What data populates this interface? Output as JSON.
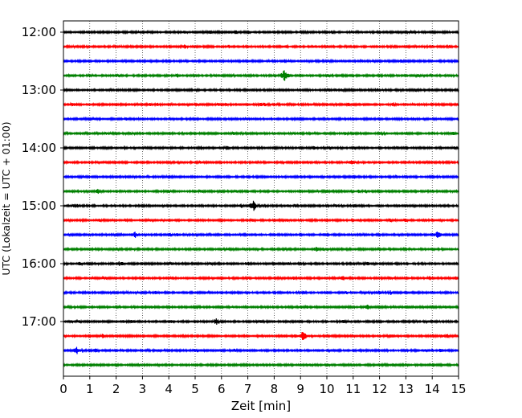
{
  "chart_data": {
    "type": "line",
    "xlabel": "Zeit  [min]",
    "ylabel": "UTC (Lokalzeit = UTC + 01:00)",
    "xlim": [
      0,
      15
    ],
    "x_ticks": [
      0,
      1,
      2,
      3,
      4,
      5,
      6,
      7,
      8,
      9,
      10,
      11,
      12,
      13,
      14,
      15
    ],
    "x_tick_labels": [
      "0",
      "1",
      "2",
      "3",
      "4",
      "5",
      "6",
      "7",
      "8",
      "9",
      "10",
      "11",
      "12",
      "13",
      "14",
      "15"
    ],
    "vertical_grid": true,
    "grid_style": "dotted",
    "trace_interval_minutes": 15,
    "time_ticks": [
      "12:00",
      "13:00",
      "14:00",
      "15:00",
      "16:00",
      "17:00"
    ],
    "trace_colors": [
      "#000000",
      "#ff0000",
      "#0000ff",
      "#008000"
    ],
    "traces": [
      {
        "start": "12:00",
        "color": "#000000"
      },
      {
        "start": "12:15",
        "color": "#ff0000"
      },
      {
        "start": "12:30",
        "color": "#0000ff"
      },
      {
        "start": "12:45",
        "color": "#008000"
      },
      {
        "start": "13:00",
        "color": "#000000"
      },
      {
        "start": "13:15",
        "color": "#ff0000"
      },
      {
        "start": "13:30",
        "color": "#0000ff"
      },
      {
        "start": "13:45",
        "color": "#008000"
      },
      {
        "start": "14:00",
        "color": "#000000"
      },
      {
        "start": "14:15",
        "color": "#ff0000"
      },
      {
        "start": "14:30",
        "color": "#0000ff"
      },
      {
        "start": "14:45",
        "color": "#008000"
      },
      {
        "start": "15:00",
        "color": "#000000"
      },
      {
        "start": "15:15",
        "color": "#ff0000"
      },
      {
        "start": "15:30",
        "color": "#0000ff"
      },
      {
        "start": "15:45",
        "color": "#008000"
      },
      {
        "start": "16:00",
        "color": "#000000"
      },
      {
        "start": "16:15",
        "color": "#ff0000"
      },
      {
        "start": "16:30",
        "color": "#0000ff"
      },
      {
        "start": "16:45",
        "color": "#008000"
      },
      {
        "start": "17:00",
        "color": "#000000"
      },
      {
        "start": "17:15",
        "color": "#ff0000"
      },
      {
        "start": "17:30",
        "color": "#0000ff"
      },
      {
        "start": "17:45",
        "color": "#008000"
      }
    ],
    "events": [
      {
        "trace": 3,
        "minute": 8.4,
        "amplitude": 1.0
      },
      {
        "trace": 12,
        "minute": 7.2,
        "amplitude": 0.8
      },
      {
        "trace": 21,
        "minute": 9.1,
        "amplitude": 1.0
      },
      {
        "trace": 22,
        "minute": 0.5,
        "amplitude": 0.6
      },
      {
        "trace": 14,
        "minute": 14.2,
        "amplitude": 0.55
      },
      {
        "trace": 14,
        "minute": 2.7,
        "amplitude": 0.55
      },
      {
        "trace": 1,
        "minute": 8.4,
        "amplitude": 0.4
      },
      {
        "trace": 11,
        "minute": 1.3,
        "amplitude": 0.45
      },
      {
        "trace": 20,
        "minute": 5.8,
        "amplitude": 0.55
      },
      {
        "trace": 19,
        "minute": 11.5,
        "amplitude": 0.5
      },
      {
        "trace": 17,
        "minute": 10.6,
        "amplitude": 0.45
      },
      {
        "trace": 21,
        "minute": 1.5,
        "amplitude": 0.4
      },
      {
        "trace": 15,
        "minute": 9.6,
        "amplitude": 0.4
      },
      {
        "trace": 13,
        "minute": 12.4,
        "amplitude": 0.35
      },
      {
        "trace": 16,
        "minute": 2.1,
        "amplitude": 0.35
      },
      {
        "trace": 8,
        "minute": 6.2,
        "amplitude": 0.35
      }
    ]
  }
}
